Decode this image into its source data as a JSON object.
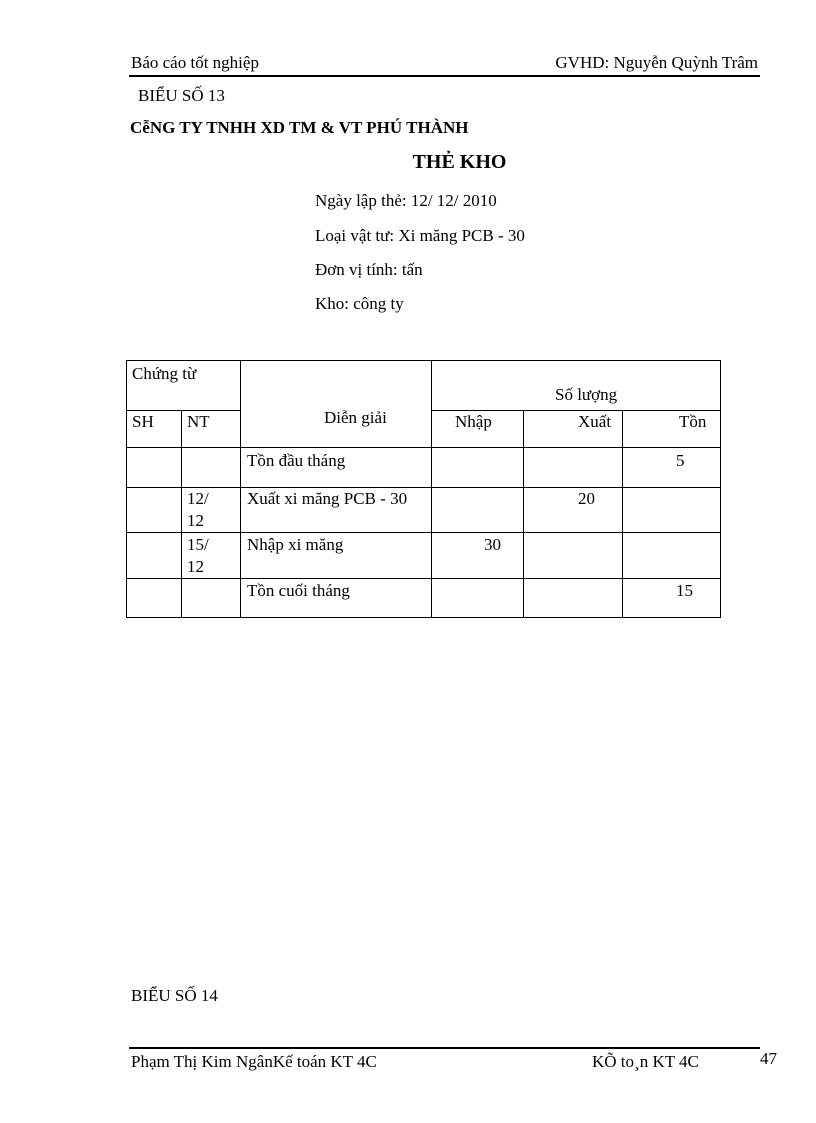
{
  "header": {
    "left": "Báo cáo tốt nghiệp",
    "right": "GVHD: Nguyễn  Quỳnh Trâm"
  },
  "doc": {
    "form_label": "BIỂU SỐ 13",
    "company": "CễNG TY TNHH XD TM & VT PHÚ THÀNH",
    "title": "THẺ KHO",
    "fields": [
      "Ngày lập thẻ: 12/ 12/ 2010",
      "Loại vật tư: Xi măng PCB - 30",
      "Đơn vị tính: tấn",
      "Kho: công ty"
    ]
  },
  "table": {
    "headers": {
      "chung_tu": "Chứng từ",
      "sh": "SH",
      "nt": "NT",
      "dien_giai": "Diễn  giải",
      "so_luong": "Số lượng",
      "nhap": "Nhập",
      "xuat": "Xuất",
      "ton": "Tồn"
    },
    "rows": [
      {
        "sh": "",
        "nt": "",
        "nt2": "",
        "dien_giai": "Tồn đầu tháng",
        "nhap": "",
        "xuat": "",
        "ton": "5"
      },
      {
        "sh": "",
        "nt": "12/",
        "nt2": "12",
        "dien_giai": "Xuất xi măng PCB - 30",
        "nhap": "",
        "xuat": "20",
        "ton": ""
      },
      {
        "sh": "",
        "nt": "15/",
        "nt2": "12",
        "dien_giai": "Nhập xi măng",
        "nhap": "30",
        "xuat": "",
        "ton": ""
      },
      {
        "sh": "",
        "nt": "",
        "nt2": "",
        "dien_giai": "Tồn cuối tháng",
        "nhap": "",
        "xuat": "",
        "ton": "15"
      }
    ]
  },
  "next_label": "BIỂU  SỐ 14",
  "footer": {
    "left": "Phạm  Thị  Kim  NgânKế  toán KT 4C",
    "right": "KÕ to¸n KT 4C",
    "page": "47"
  }
}
